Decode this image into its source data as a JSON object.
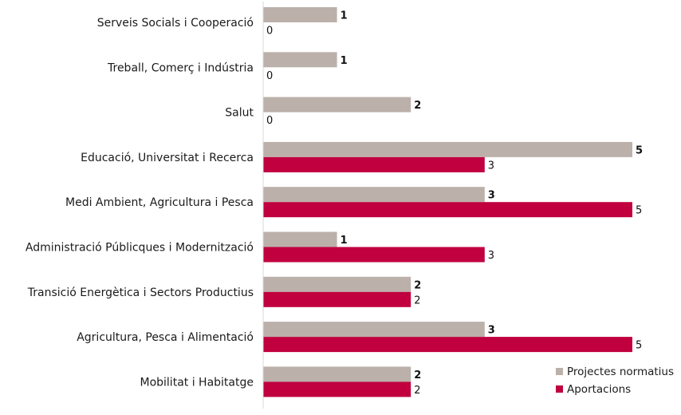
{
  "chart_data": {
    "type": "bar",
    "orientation": "horizontal",
    "categories": [
      "Serveis Socials i Cooperació",
      "Treball, Comerç i Indústria",
      "Salut",
      "Educació, Universitat i Recerca",
      "Medi Ambient, Agricultura i Pesca",
      "Administració Públicques i Modernització",
      "Transició Energètica i Sectors Productius",
      "Agricultura, Pesca i Alimentació",
      "Mobilitat i Habitatge"
    ],
    "series": [
      {
        "name": "Projectes normatius",
        "color": "#bcb0aa",
        "values": [
          1,
          1,
          2,
          5,
          3,
          1,
          2,
          3,
          2
        ]
      },
      {
        "name": "Aportacions",
        "color": "#c0003f",
        "values": [
          0,
          0,
          0,
          3,
          5,
          3,
          2,
          5,
          2
        ]
      }
    ],
    "xlim": [
      0,
      5
    ],
    "grid": false,
    "data_labels": true,
    "legend_position": "bottom-right"
  }
}
